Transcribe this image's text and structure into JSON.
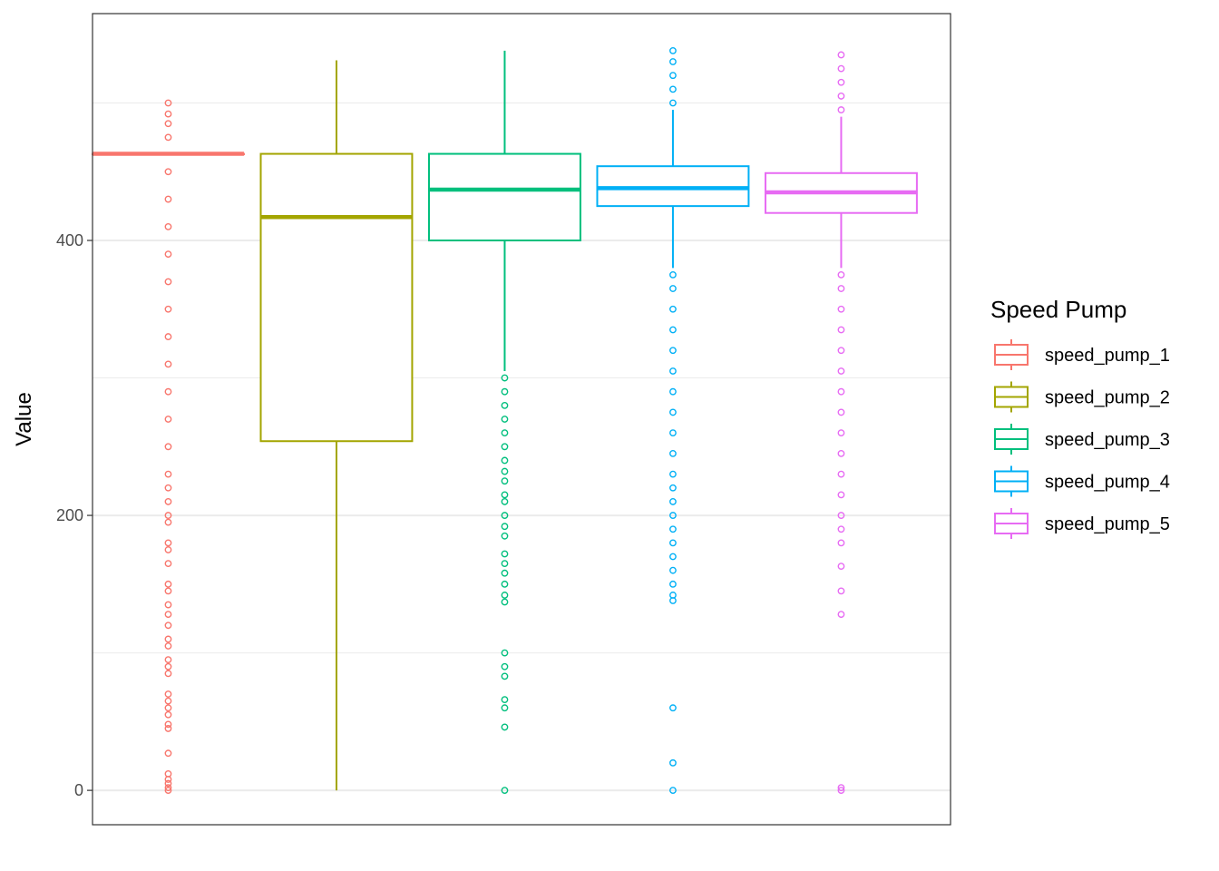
{
  "chart_data": {
    "type": "boxplot",
    "xlabel": "",
    "ylabel": "Value",
    "ylim": [
      -25,
      565
    ],
    "yticks": [
      0,
      200,
      400
    ],
    "grid": true,
    "legend": {
      "title": "Speed Pump",
      "position": "right"
    },
    "series": [
      {
        "name": "speed_pump_1",
        "color": "#F8766D",
        "q1": 463,
        "median": 463,
        "q3": 463,
        "whisker_low": 463,
        "whisker_high": 463,
        "outliers": [
          0,
          2,
          5,
          8,
          12,
          27,
          45,
          48,
          55,
          60,
          65,
          70,
          85,
          90,
          95,
          105,
          110,
          120,
          128,
          135,
          145,
          150,
          165,
          175,
          180,
          195,
          200,
          210,
          220,
          230,
          250,
          270,
          290,
          310,
          330,
          350,
          370,
          390,
          410,
          430,
          450,
          475,
          485,
          492,
          500
        ]
      },
      {
        "name": "speed_pump_2",
        "color": "#A3A500",
        "q1": 254,
        "median": 417,
        "q3": 463,
        "whisker_low": 0,
        "whisker_high": 531,
        "outliers": []
      },
      {
        "name": "speed_pump_3",
        "color": "#00BF7D",
        "q1": 400,
        "median": 437,
        "q3": 463,
        "whisker_low": 305,
        "whisker_high": 538,
        "outliers": [
          0,
          46,
          66,
          60,
          83,
          90,
          100,
          137,
          142,
          150,
          158,
          165,
          172,
          185,
          192,
          200,
          210,
          215,
          225,
          232,
          240,
          250,
          260,
          270,
          280,
          290,
          300
        ]
      },
      {
        "name": "speed_pump_4",
        "color": "#00B0F6",
        "q1": 425,
        "median": 438,
        "q3": 454,
        "whisker_low": 380,
        "whisker_high": 495,
        "outliers": [
          0,
          20,
          60,
          138,
          142,
          150,
          160,
          170,
          180,
          190,
          200,
          210,
          220,
          230,
          245,
          260,
          275,
          290,
          305,
          320,
          335,
          350,
          365,
          375,
          500,
          510,
          520,
          530,
          538
        ]
      },
      {
        "name": "speed_pump_5",
        "color": "#E76BF3",
        "q1": 420,
        "median": 435,
        "q3": 449,
        "whisker_low": 380,
        "whisker_high": 490,
        "outliers": [
          0,
          2,
          128,
          145,
          163,
          180,
          190,
          200,
          215,
          230,
          245,
          260,
          275,
          290,
          305,
          320,
          335,
          350,
          365,
          375,
          495,
          505,
          515,
          525,
          535
        ]
      }
    ]
  }
}
